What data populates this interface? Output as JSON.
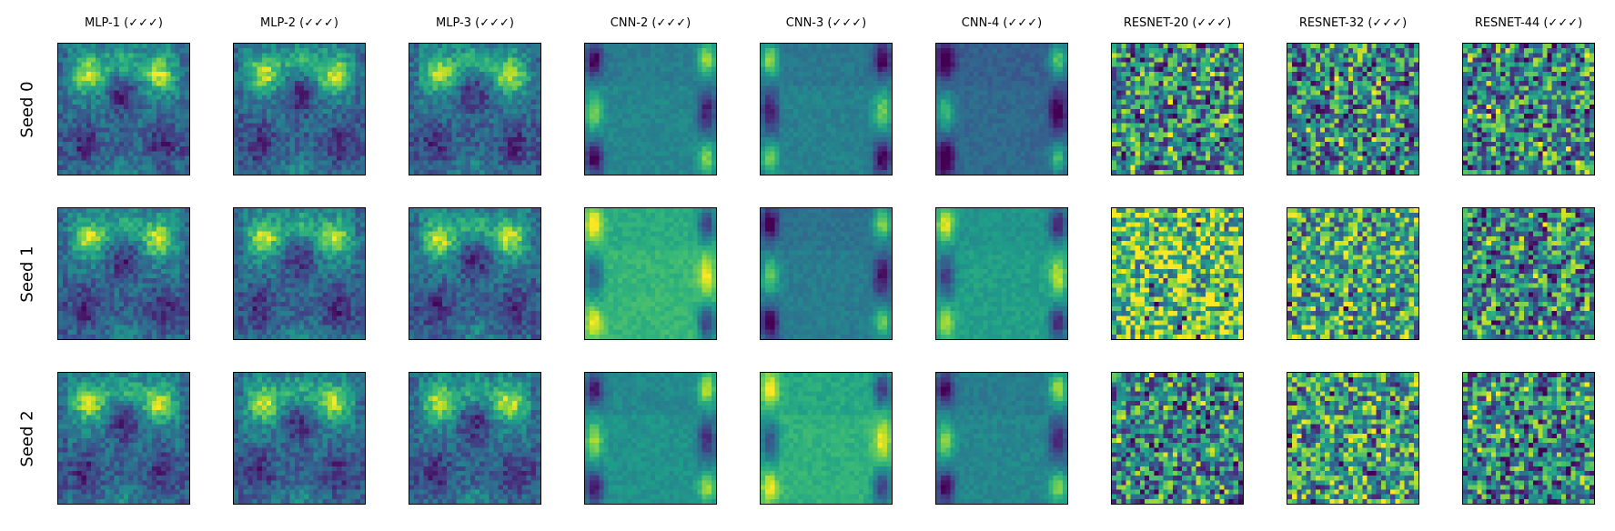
{
  "chart_data": {
    "type": "heatmap",
    "grid_shape": [
      3,
      9
    ],
    "column_titles": [
      "MLP-1 (✓✓✓)",
      "MLP-2 (✓✓✓)",
      "MLP-3 (✓✓✓)",
      "CNN-2 (✓✓✓)",
      "CNN-3 (✓✓✓)",
      "CNN-4 (✓✓✓)",
      "RESNET-20 (✓✓✓)",
      "RESNET-32 (✓✓✓)",
      "RESNET-44 (✓✓✓)"
    ],
    "row_labels": [
      "Seed 0",
      "Seed 1",
      "Seed 2"
    ],
    "colormap": "viridis",
    "image_resolution": [
      28,
      28
    ],
    "axis_ticks": false
  }
}
